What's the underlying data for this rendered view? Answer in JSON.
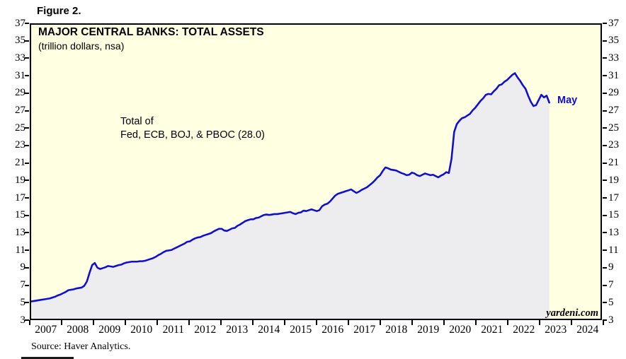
{
  "figure_label": "Figure 2.",
  "header": {
    "title": "MAJOR CENTRAL BANKS: TOTAL ASSETS",
    "subtitle": "(trillion dollars, nsa)"
  },
  "annotation": {
    "line1": "Total of",
    "line2": "Fed, ECB, BOJ, & PBOC (28.0)"
  },
  "end_point_label": "May",
  "watermark": "yardeni.com",
  "source": "Source: Haver Analytics.",
  "colors": {
    "line": "#0f0fcd",
    "end_label": "#0f0fcd",
    "plot_background": "#ffffe1",
    "area_fill": "#ededf0",
    "frame": "#000000"
  },
  "chart_data": {
    "type": "area",
    "title": "MAJOR CENTRAL BANKS: TOTAL ASSETS",
    "subtitle": "(trillion dollars, nsa)",
    "series_name": "Total of Fed, ECB, BOJ, & PBOC",
    "unit": "trillion dollars, nsa",
    "latest_value": 28.0,
    "latest_point_label": "May",
    "grid": false,
    "legend": false,
    "ylim": [
      3,
      37
    ],
    "y_ticks": [
      3,
      5,
      7,
      9,
      11,
      13,
      15,
      17,
      19,
      21,
      23,
      25,
      27,
      29,
      31,
      33,
      35,
      37
    ],
    "x_years": [
      2007,
      2008,
      2009,
      2010,
      2011,
      2012,
      2013,
      2014,
      2015,
      2016,
      2017,
      2018,
      2019,
      2020,
      2021,
      2022,
      2023,
      2024
    ],
    "start_month": "2007-01",
    "values": [
      5.0,
      5.05,
      5.1,
      5.15,
      5.2,
      5.25,
      5.3,
      5.35,
      5.45,
      5.55,
      5.7,
      5.8,
      5.95,
      6.1,
      6.3,
      6.35,
      6.4,
      6.5,
      6.55,
      6.6,
      6.8,
      7.3,
      8.3,
      9.2,
      9.45,
      8.9,
      8.75,
      8.85,
      8.95,
      9.1,
      9.05,
      9.0,
      9.1,
      9.2,
      9.25,
      9.4,
      9.5,
      9.55,
      9.6,
      9.6,
      9.6,
      9.65,
      9.65,
      9.7,
      9.8,
      9.9,
      10.0,
      10.15,
      10.35,
      10.5,
      10.7,
      10.85,
      10.9,
      10.95,
      11.1,
      11.25,
      11.4,
      11.55,
      11.7,
      11.9,
      11.95,
      12.15,
      12.3,
      12.4,
      12.45,
      12.6,
      12.7,
      12.8,
      12.9,
      13.1,
      13.25,
      13.4,
      13.4,
      13.2,
      13.15,
      13.3,
      13.45,
      13.5,
      13.75,
      13.9,
      14.1,
      14.3,
      14.4,
      14.5,
      14.5,
      14.65,
      14.7,
      14.85,
      15.0,
      15.05,
      15.0,
      15.05,
      15.1,
      15.1,
      15.15,
      15.2,
      15.25,
      15.3,
      15.35,
      15.2,
      15.1,
      15.25,
      15.3,
      15.5,
      15.45,
      15.55,
      15.65,
      15.55,
      15.45,
      15.55,
      16.0,
      16.2,
      16.3,
      16.55,
      16.9,
      17.25,
      17.45,
      17.55,
      17.65,
      17.75,
      17.85,
      17.95,
      17.75,
      17.55,
      17.7,
      17.9,
      18.05,
      18.2,
      18.45,
      18.7,
      19.0,
      19.35,
      19.6,
      20.1,
      20.5,
      20.4,
      20.25,
      20.2,
      20.15,
      20.0,
      19.85,
      19.75,
      19.6,
      19.65,
      19.9,
      19.8,
      19.6,
      19.5,
      19.65,
      19.8,
      19.7,
      19.6,
      19.65,
      19.5,
      19.35,
      19.55,
      19.7,
      19.95,
      19.85,
      21.5,
      24.6,
      25.5,
      25.9,
      26.2,
      26.3,
      26.5,
      26.7,
      27.1,
      27.4,
      27.8,
      28.2,
      28.5,
      28.9,
      29.0,
      28.95,
      29.3,
      29.6,
      30.0,
      30.1,
      30.4,
      30.6,
      30.9,
      31.2,
      31.4,
      30.9,
      30.5,
      30.0,
      29.6,
      28.8,
      28.1,
      27.6,
      27.7,
      28.3,
      28.9,
      28.6,
      28.8,
      28.0
    ]
  }
}
